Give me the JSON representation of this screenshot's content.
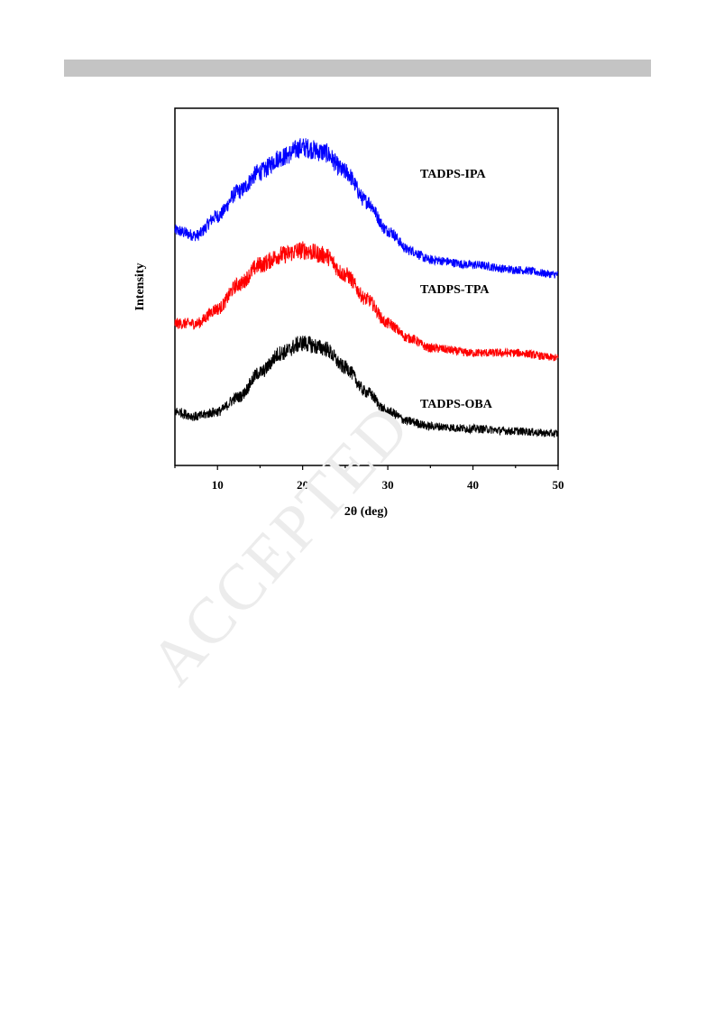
{
  "watermark": "ACCEPTED",
  "chart_data": {
    "type": "line",
    "xlabel": "2θ (deg)",
    "ylabel": "Intensity",
    "xlim": [
      5,
      50
    ],
    "xticks": [
      10,
      20,
      30,
      40,
      50
    ],
    "yticks_shown": false,
    "grid": false,
    "legend": "labels placed beside each curve",
    "series": [
      {
        "name": "TADPS-IPA",
        "color": "#0000ff",
        "x": [
          5,
          7.5,
          10,
          12.5,
          15,
          17.5,
          20,
          22.5,
          25,
          27.5,
          30,
          32.5,
          35,
          40,
          45,
          50
        ],
        "y": [
          4.3,
          4.2,
          4.6,
          5.1,
          5.5,
          5.8,
          6.0,
          5.9,
          5.5,
          4.9,
          4.3,
          3.9,
          3.7,
          3.6,
          3.5,
          3.4
        ]
      },
      {
        "name": "TADPS-TPA",
        "color": "#ff0000",
        "x": [
          5,
          7.5,
          10,
          12.5,
          15,
          17.5,
          20,
          22.5,
          25,
          27.5,
          30,
          32.5,
          35,
          40,
          45,
          50
        ],
        "y": [
          2.4,
          2.4,
          2.7,
          3.2,
          3.6,
          3.8,
          3.9,
          3.8,
          3.4,
          2.9,
          2.4,
          2.1,
          1.9,
          1.8,
          1.8,
          1.7
        ]
      },
      {
        "name": "TADPS-OBA",
        "color": "#000000",
        "x": [
          5,
          7.5,
          10,
          12.5,
          15,
          17.5,
          20,
          22.5,
          25,
          27.5,
          30,
          32.5,
          35,
          40,
          45,
          50
        ],
        "y": [
          0.6,
          0.5,
          0.6,
          0.9,
          1.4,
          1.8,
          2.0,
          1.9,
          1.5,
          1.0,
          0.6,
          0.4,
          0.3,
          0.25,
          0.2,
          0.15
        ]
      }
    ]
  }
}
